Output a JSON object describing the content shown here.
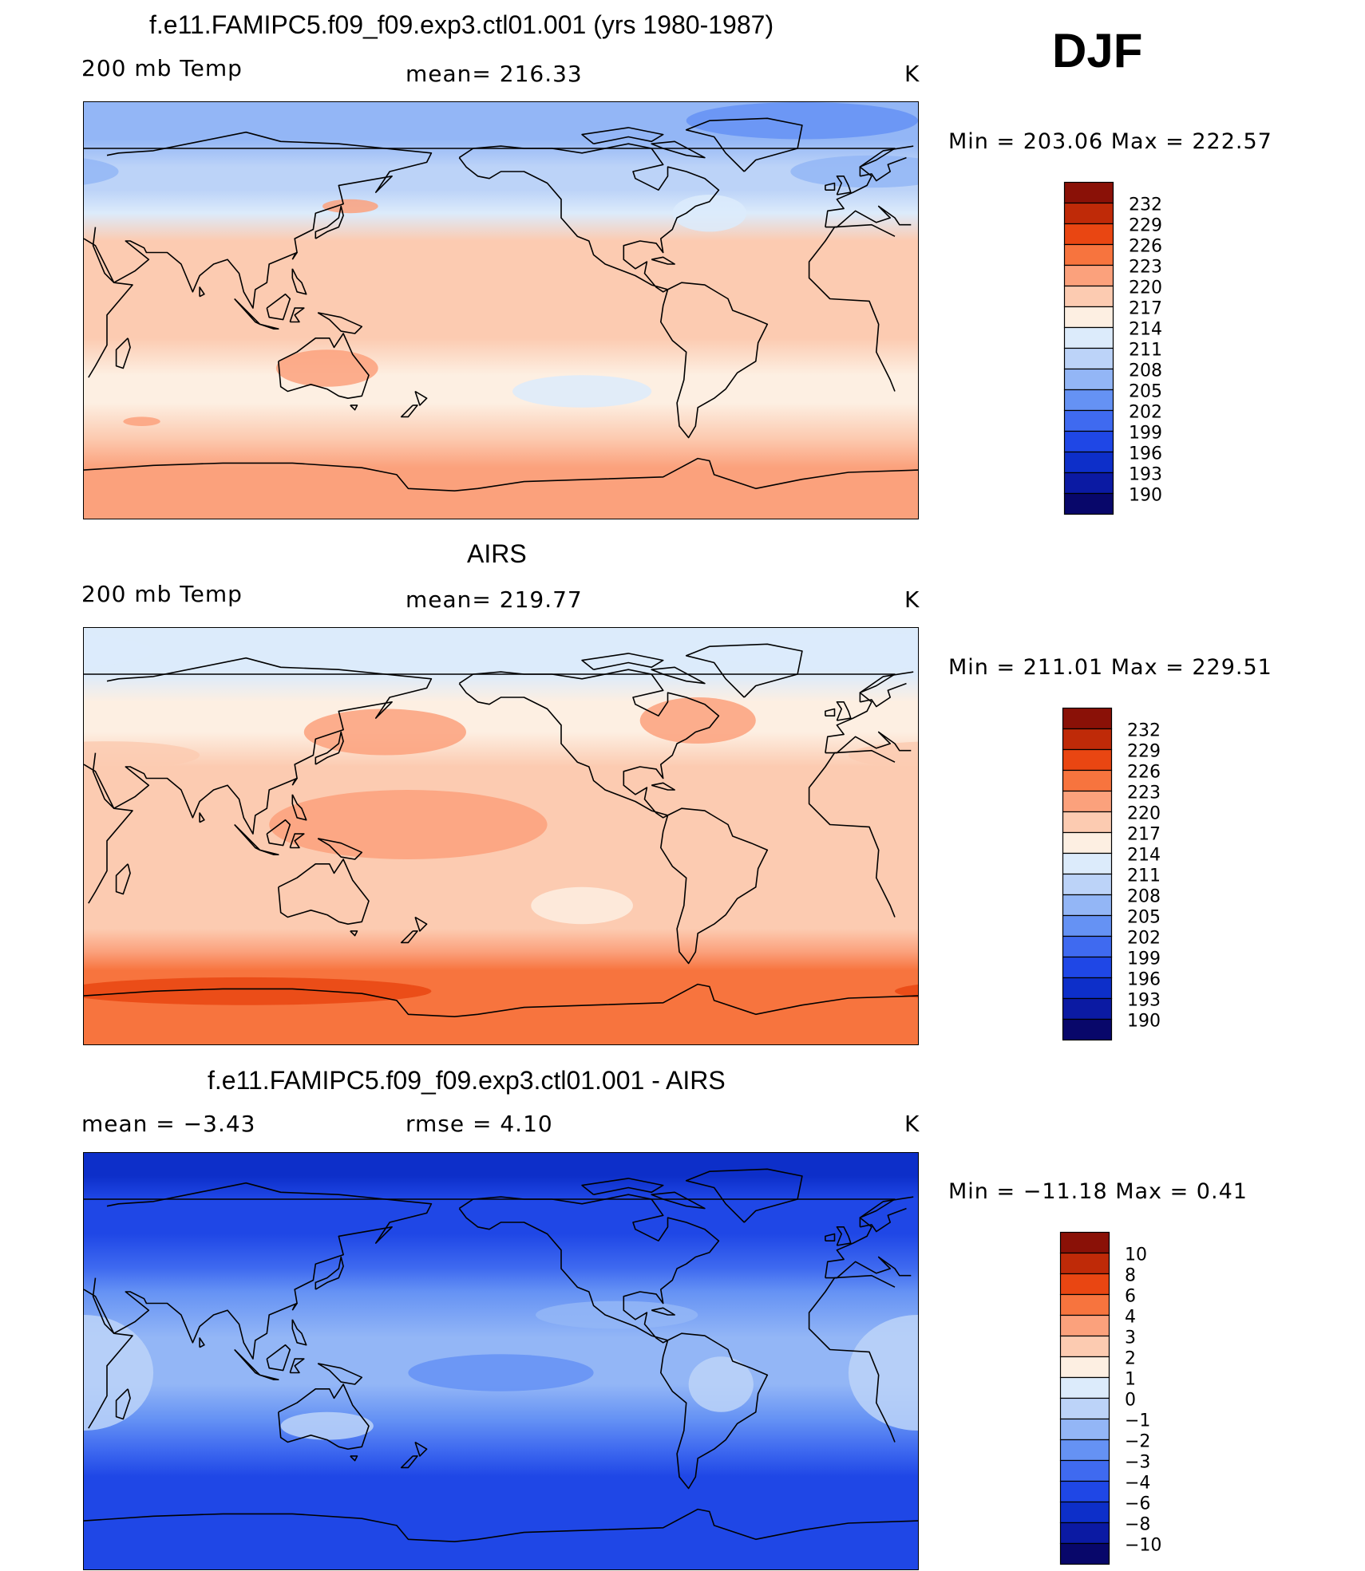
{
  "season": "DJF",
  "panels": [
    {
      "id": "model",
      "title": "f.e11.FAMIPC5.f09_f09.exp3.ctl01.001 (yrs 1980-1987)",
      "left_label": "200 mb Temp",
      "center_label": "mean=  216.33",
      "units": "K",
      "minmax": "Min  =  203.06  Max  =  222.57",
      "colorbar": [
        "232",
        "229",
        "226",
        "223",
        "220",
        "217",
        "214",
        "211",
        "208",
        "205",
        "202",
        "199",
        "196",
        "193",
        "190"
      ],
      "bands": [
        {
          "lat": 90,
          "level": 6
        },
        {
          "lat": 74,
          "level": 6
        },
        {
          "lat": 62,
          "level": 7
        },
        {
          "lat": 52,
          "level": 7
        },
        {
          "lat": 42,
          "level": 8
        },
        {
          "lat": 30,
          "level": 10
        },
        {
          "lat": 10,
          "level": 10
        },
        {
          "lat": -12,
          "level": 10
        },
        {
          "lat": -28,
          "level": 9
        },
        {
          "lat": -40,
          "level": 9
        },
        {
          "lat": -55,
          "level": 10
        },
        {
          "lat": -68,
          "level": 11
        },
        {
          "lat": -90,
          "level": 11
        }
      ],
      "blobs": [
        {
          "lon": 135,
          "lat": -25,
          "rx": 22,
          "ry": 8,
          "level": 11
        },
        {
          "lon": 145,
          "lat": 45,
          "rx": 12,
          "ry": 3,
          "level": 11
        },
        {
          "lon": -115,
          "lat": -35,
          "rx": 30,
          "ry": 7,
          "level": 8
        },
        {
          "lon": -60,
          "lat": 42,
          "rx": 16,
          "ry": 8,
          "level": 8
        },
        {
          "lon": 55,
          "lat": -48,
          "rx": 8,
          "ry": 2,
          "level": 11
        },
        {
          "lon": -20,
          "lat": 82,
          "rx": 50,
          "ry": 8,
          "level": 5
        },
        {
          "lon": 10,
          "lat": 60,
          "rx": 35,
          "ry": 7,
          "level": 6
        }
      ]
    },
    {
      "id": "obs",
      "title": "AIRS",
      "left_label": "200 mb Temp",
      "center_label": "mean=  219.77",
      "units": "K",
      "minmax": "Min  =  211.01  Max  =  229.51",
      "colorbar": [
        "232",
        "229",
        "226",
        "223",
        "220",
        "217",
        "214",
        "211",
        "208",
        "205",
        "202",
        "199",
        "196",
        "193",
        "190"
      ],
      "bands": [
        {
          "lat": 90,
          "level": 8
        },
        {
          "lat": 70,
          "level": 8
        },
        {
          "lat": 58,
          "level": 9
        },
        {
          "lat": 45,
          "level": 9
        },
        {
          "lat": 30,
          "level": 10
        },
        {
          "lat": 10,
          "level": 10
        },
        {
          "lat": -15,
          "level": 10
        },
        {
          "lat": -30,
          "level": 10
        },
        {
          "lat": -40,
          "level": 10
        },
        {
          "lat": -50,
          "level": 11
        },
        {
          "lat": -58,
          "level": 12
        },
        {
          "lat": -70,
          "level": 12
        },
        {
          "lat": -90,
          "level": 12
        }
      ],
      "blobs": [
        {
          "lon": 160,
          "lat": 45,
          "rx": 35,
          "ry": 10,
          "level": 11
        },
        {
          "lon": -65,
          "lat": 50,
          "rx": 25,
          "ry": 10,
          "level": 11
        },
        {
          "lon": 170,
          "lat": 5,
          "rx": 60,
          "ry": 15,
          "level": 11
        },
        {
          "lon": -115,
          "lat": -30,
          "rx": 22,
          "ry": 8,
          "level": 9
        },
        {
          "lon": 40,
          "lat": 35,
          "rx": 40,
          "ry": 6,
          "level": 10
        },
        {
          "lon": 0,
          "lat": 80,
          "rx": 60,
          "ry": 8,
          "level": 8
        },
        {
          "lon": 100,
          "lat": -67,
          "rx": 80,
          "ry": 6,
          "level": 13
        }
      ]
    },
    {
      "id": "diff",
      "title": "f.e11.FAMIPC5.f09_f09.exp3.ctl01.001 - AIRS",
      "left_label": "mean  =    −3.43",
      "center_label": "rmse  =     4.10",
      "units": "K",
      "minmax": "Min  =  −11.18  Max  =     0.41",
      "colorbar": [
        "10",
        "8",
        "6",
        "4",
        "3",
        "2",
        "1",
        "0",
        "−1",
        "−2",
        "−3",
        "−4",
        "−6",
        "−8",
        "−10"
      ],
      "bands": [
        {
          "lat": 90,
          "level": 2
        },
        {
          "lat": 80,
          "level": 2
        },
        {
          "lat": 70,
          "level": 3
        },
        {
          "lat": 55,
          "level": 3
        },
        {
          "lat": 40,
          "level": 4
        },
        {
          "lat": 30,
          "level": 5
        },
        {
          "lat": 10,
          "level": 6
        },
        {
          "lat": -10,
          "level": 6
        },
        {
          "lat": -25,
          "level": 5
        },
        {
          "lat": -38,
          "level": 4
        },
        {
          "lat": -50,
          "level": 3
        },
        {
          "lat": -62,
          "level": 3
        },
        {
          "lat": -90,
          "level": 3
        }
      ],
      "blobs": [
        {
          "lon": 30,
          "lat": -5,
          "rx": 30,
          "ry": 25,
          "level": 7
        },
        {
          "lon": 135,
          "lat": -28,
          "rx": 20,
          "ry": 6,
          "level": 7
        },
        {
          "lon": -150,
          "lat": -5,
          "rx": 40,
          "ry": 8,
          "level": 5
        },
        {
          "lon": -100,
          "lat": 20,
          "rx": 35,
          "ry": 6,
          "level": 6
        },
        {
          "lon": -55,
          "lat": -10,
          "rx": 14,
          "ry": 12,
          "level": 7
        }
      ]
    }
  ],
  "palette": [
    "#08076a",
    "#0b1aa3",
    "#0d2fc9",
    "#1f47e6",
    "#3f6af0",
    "#6592f4",
    "#93b6f6",
    "#bcd3f8",
    "#dcebfb",
    "#fdefe2",
    "#fccbb1",
    "#fba17c",
    "#f7743e",
    "#e94612",
    "#bf2a08",
    "#8a1107"
  ],
  "colors": {
    "coast": "#000000",
    "frame": "#000000",
    "background": "#ffffff"
  }
}
